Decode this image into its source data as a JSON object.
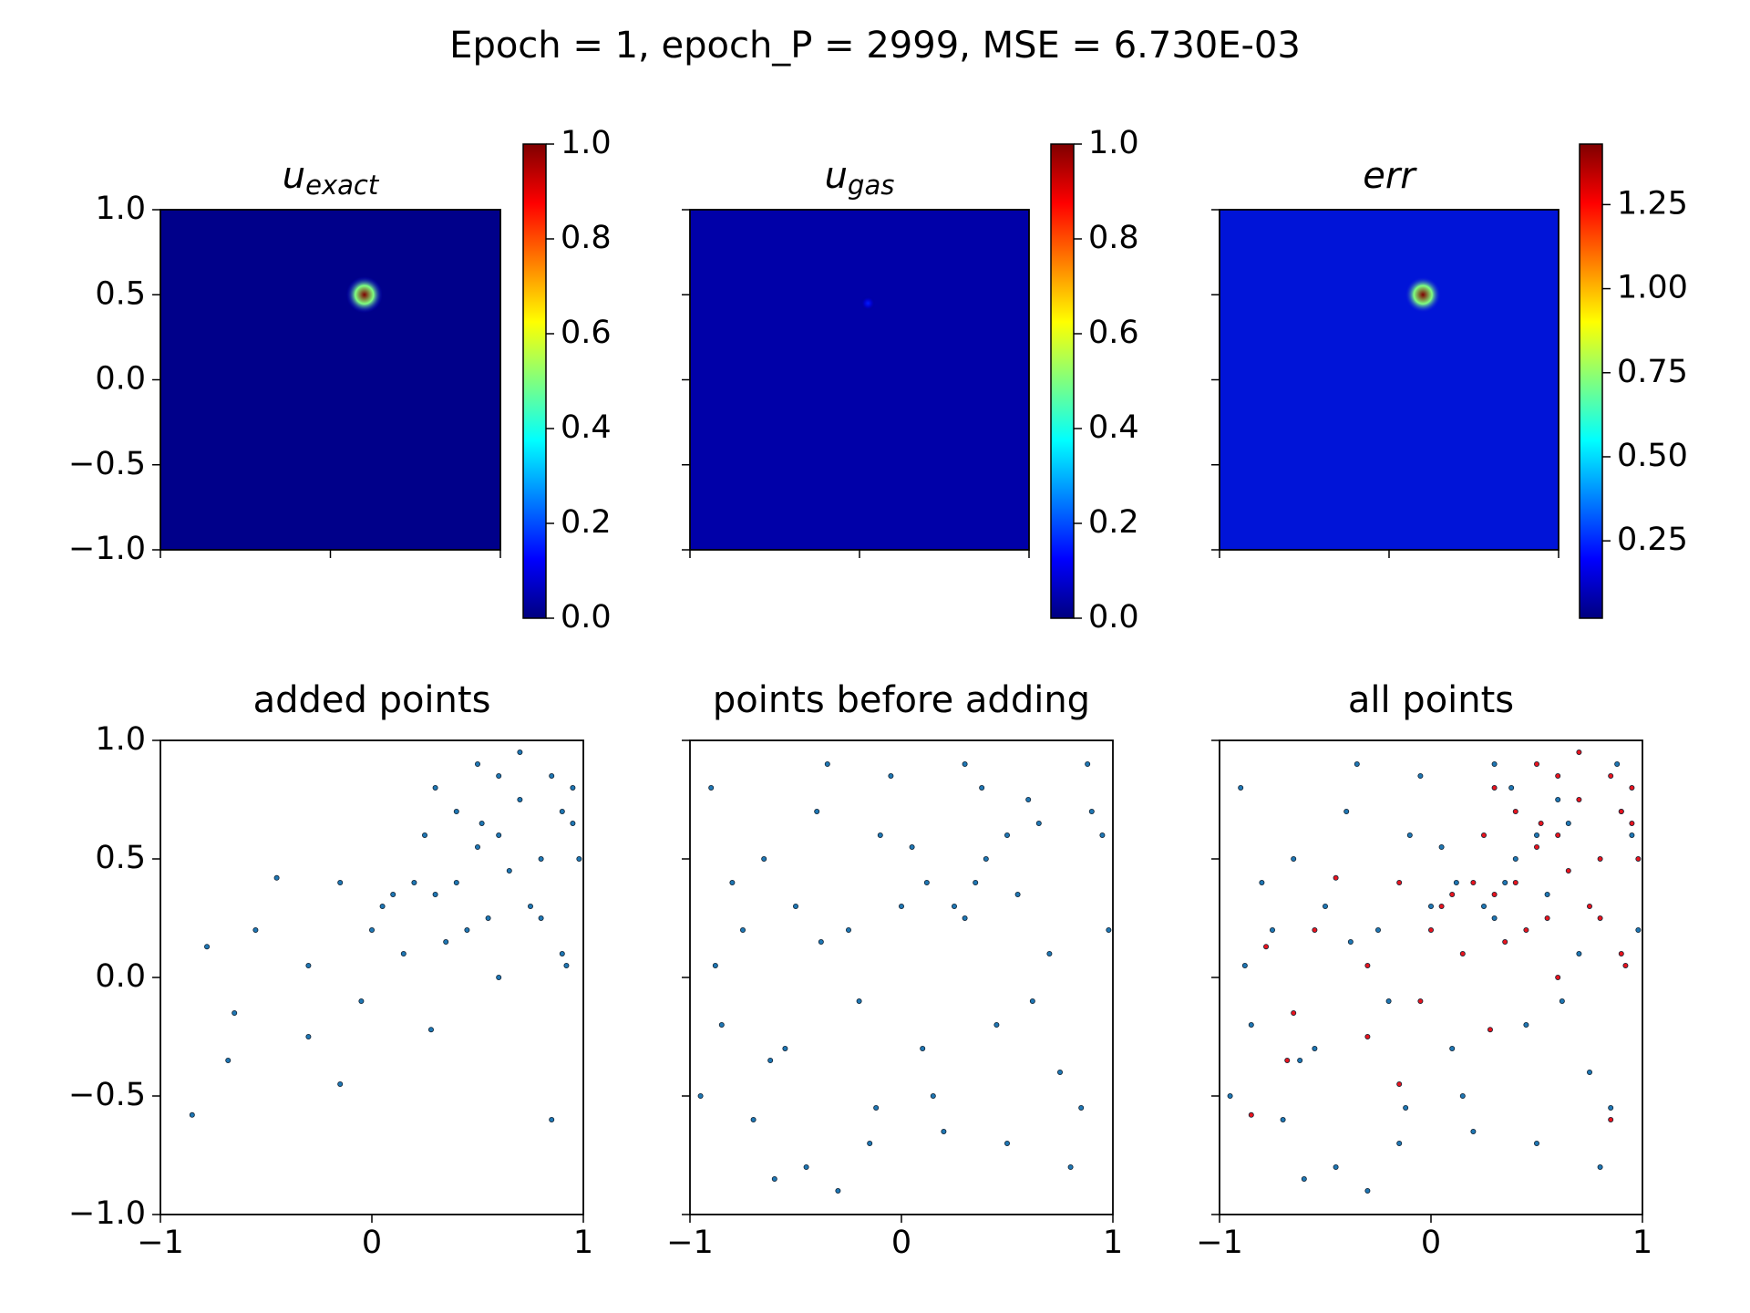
{
  "title": "Epoch = 1, epoch_P = 2999, MSE = 6.730E-03",
  "chart_data": [
    {
      "type": "heatmap",
      "title": "u",
      "title_subscript": "exact",
      "colormap": "jet",
      "color": "#00008a",
      "peak_x": 0.2,
      "peak_y": 0.5,
      "peak_value": 1.0,
      "xlim": [
        -1,
        1
      ],
      "ylim": [
        -1,
        1
      ],
      "xticks": [
        -1,
        0,
        1
      ],
      "show_xticklabels": false,
      "show_yticklabels": true,
      "yticks": [
        {
          "value": -1,
          "label": "−1.0"
        },
        {
          "value": -0.5,
          "label": "−0.5"
        },
        {
          "value": 0,
          "label": "0.0"
        },
        0.5,
        {
          "value": 1,
          "label": "1.0"
        }
      ],
      "clim": [
        0,
        1
      ],
      "cticks": [
        {
          "value": 0,
          "label": "0.0"
        },
        0.2,
        0.4,
        0.6,
        0.8,
        {
          "value": 1,
          "label": "1.0"
        }
      ]
    },
    {
      "type": "heatmap",
      "title": "u",
      "title_subscript": "gas",
      "colormap": "jet",
      "color": "#0000a8",
      "peak_x": 0.05,
      "peak_y": 0.45,
      "peak_value": 0.15,
      "xlim": [
        -1,
        1
      ],
      "ylim": [
        -1,
        1
      ],
      "xticks": [
        -1,
        0,
        1
      ],
      "show_xticklabels": false,
      "show_yticklabels": false,
      "yticks": [
        -1,
        -0.5,
        0,
        0.5,
        1
      ],
      "clim": [
        0,
        1
      ],
      "cticks": [
        {
          "value": 0,
          "label": "0.0"
        },
        0.2,
        0.4,
        0.6,
        0.8,
        {
          "value": 1,
          "label": "1.0"
        }
      ]
    },
    {
      "type": "heatmap",
      "title": "err",
      "colormap": "jet",
      "color": "#0014d8",
      "peak_x": 0.2,
      "peak_y": 0.5,
      "peak_value": 1.43,
      "xlim": [
        -1,
        1
      ],
      "ylim": [
        -1,
        1
      ],
      "xticks": [
        -1,
        0,
        1
      ],
      "show_xticklabels": false,
      "show_yticklabels": false,
      "yticks": [
        -1,
        -0.5,
        0,
        0.5,
        1
      ],
      "clim": [
        0.02,
        1.43
      ],
      "cticks": [
        0.25,
        {
          "value": 0.5,
          "label": "0.50"
        },
        0.75,
        {
          "value": 1,
          "label": "1.00"
        },
        1.25
      ]
    },
    {
      "type": "scatter",
      "title": "added points",
      "show_yticklabels": true,
      "xlim": [
        -1,
        1
      ],
      "ylim": [
        -1,
        1
      ],
      "xticks": [
        {
          "value": -1,
          "label": "−1"
        },
        0,
        1
      ],
      "yticks": [
        {
          "value": -1,
          "label": "−1.0"
        },
        {
          "value": -0.5,
          "label": "−0.5"
        },
        {
          "value": 0,
          "label": "0.0"
        },
        0.5,
        {
          "value": 1,
          "label": "1.0"
        }
      ],
      "series": [
        {
          "color": "#1f77b4",
          "x": [
            0.85,
            0.9,
            0.7,
            0.6,
            0.95,
            0.8,
            0.5,
            0.4,
            0.3,
            0.65,
            0.75,
            0.55,
            0.45,
            0.35,
            0.2,
            0.1,
            0.05,
            0.25,
            0.9,
            0.98,
            0.7,
            0.6,
            0.5,
            0.4,
            0.3,
            -0.15,
            -0.3,
            -0.45,
            -0.55,
            -0.78,
            -0.65,
            -0.68,
            -0.85,
            -0.15,
            -0.3,
            0.85,
            0.92,
            0.15,
            0.0,
            0.6,
            0.8,
            0.95,
            0.28,
            0.52,
            -0.05
          ],
          "values": [
            0.85,
            0.7,
            0.75,
            0.6,
            0.65,
            0.5,
            0.55,
            0.4,
            0.35,
            0.45,
            0.3,
            0.25,
            0.2,
            0.15,
            0.4,
            0.35,
            0.3,
            0.6,
            0.1,
            0.5,
            0.95,
            0.85,
            0.9,
            0.7,
            0.8,
            0.4,
            0.05,
            0.42,
            0.2,
            0.13,
            -0.15,
            -0.35,
            -0.58,
            -0.45,
            -0.25,
            -0.6,
            0.05,
            0.1,
            0.2,
            0.0,
            0.25,
            0.8,
            -0.22,
            0.65,
            -0.1
          ]
        }
      ]
    },
    {
      "type": "scatter",
      "title": "points before adding",
      "show_yticklabels": false,
      "xlim": [
        -1,
        1
      ],
      "ylim": [
        -1,
        1
      ],
      "xticks": [
        {
          "value": -1,
          "label": "−1"
        },
        0,
        1
      ],
      "yticks": [
        -1,
        -0.5,
        0,
        0.5,
        1
      ],
      "series": [
        {
          "color": "#1f77b4",
          "x": [
            -0.9,
            -0.7,
            -0.5,
            -0.3,
            -0.1,
            0.1,
            0.3,
            0.5,
            0.7,
            0.9,
            -0.85,
            -0.65,
            -0.45,
            -0.25,
            -0.05,
            0.15,
            0.35,
            0.55,
            0.75,
            0.95,
            -0.8,
            -0.6,
            -0.4,
            -0.2,
            0.0,
            0.2,
            0.4,
            0.6,
            0.8,
            0.98,
            -0.95,
            -0.75,
            -0.55,
            -0.35,
            -0.15,
            0.05,
            0.25,
            0.45,
            0.65,
            0.85,
            -0.88,
            -0.62,
            -0.38,
            -0.12,
            0.12,
            0.38,
            0.62,
            0.88,
            0.5,
            0.3
          ],
          "values": [
            0.8,
            -0.6,
            0.3,
            -0.9,
            0.6,
            -0.3,
            0.9,
            -0.7,
            0.1,
            0.7,
            -0.2,
            0.5,
            -0.8,
            0.2,
            0.85,
            -0.5,
            0.4,
            0.35,
            -0.4,
            0.6,
            0.4,
            -0.85,
            0.7,
            -0.1,
            0.3,
            -0.65,
            0.5,
            0.75,
            -0.8,
            0.2,
            -0.5,
            0.2,
            -0.3,
            0.9,
            -0.7,
            0.55,
            0.3,
            -0.2,
            0.65,
            -0.55,
            0.05,
            -0.35,
            0.15,
            -0.55,
            0.4,
            0.8,
            -0.1,
            0.9,
            0.6,
            0.25
          ]
        }
      ]
    },
    {
      "type": "scatter",
      "title": "all points",
      "show_yticklabels": false,
      "xlim": [
        -1,
        1
      ],
      "ylim": [
        -1,
        1
      ],
      "xticks": [
        {
          "value": -1,
          "label": "−1"
        },
        0,
        1
      ],
      "yticks": [
        -1,
        -0.5,
        0,
        0.5,
        1
      ],
      "series": [
        {
          "color": "#1f77b4",
          "x": [
            -0.9,
            -0.7,
            -0.5,
            -0.3,
            -0.1,
            0.1,
            0.3,
            0.5,
            0.7,
            0.9,
            -0.85,
            -0.65,
            -0.45,
            -0.25,
            -0.05,
            0.15,
            0.35,
            0.55,
            0.75,
            0.95,
            -0.8,
            -0.6,
            -0.4,
            -0.2,
            0.0,
            0.2,
            0.4,
            0.6,
            0.8,
            0.98,
            -0.95,
            -0.75,
            -0.55,
            -0.35,
            -0.15,
            0.05,
            0.25,
            0.45,
            0.65,
            0.85,
            -0.88,
            -0.62,
            -0.38,
            -0.12,
            0.12,
            0.38,
            0.62,
            0.88,
            0.5,
            0.3
          ],
          "values": [
            0.8,
            -0.6,
            0.3,
            -0.9,
            0.6,
            -0.3,
            0.9,
            -0.7,
            0.1,
            0.7,
            -0.2,
            0.5,
            -0.8,
            0.2,
            0.85,
            -0.5,
            0.4,
            0.35,
            -0.4,
            0.6,
            0.4,
            -0.85,
            0.7,
            -0.1,
            0.3,
            -0.65,
            0.5,
            0.75,
            -0.8,
            0.2,
            -0.5,
            0.2,
            -0.3,
            0.9,
            -0.7,
            0.55,
            0.3,
            -0.2,
            0.65,
            -0.55,
            0.05,
            -0.35,
            0.15,
            -0.55,
            0.4,
            0.8,
            -0.1,
            0.9,
            0.6,
            0.25
          ]
        },
        {
          "color": "#e8141e",
          "x": [
            0.85,
            0.9,
            0.7,
            0.6,
            0.95,
            0.8,
            0.5,
            0.4,
            0.3,
            0.65,
            0.75,
            0.55,
            0.45,
            0.35,
            0.2,
            0.1,
            0.05,
            0.25,
            0.9,
            0.98,
            0.7,
            0.6,
            0.5,
            0.4,
            0.3,
            -0.15,
            -0.3,
            -0.45,
            -0.55,
            -0.78,
            -0.65,
            -0.68,
            -0.85,
            -0.15,
            -0.3,
            0.85,
            0.92,
            0.15,
            0.0,
            0.6,
            0.8,
            0.95,
            0.28,
            0.52,
            -0.05
          ],
          "values": [
            0.85,
            0.7,
            0.75,
            0.6,
            0.65,
            0.5,
            0.55,
            0.4,
            0.35,
            0.45,
            0.3,
            0.25,
            0.2,
            0.15,
            0.4,
            0.35,
            0.3,
            0.6,
            0.1,
            0.5,
            0.95,
            0.85,
            0.9,
            0.7,
            0.8,
            0.4,
            0.05,
            0.42,
            0.2,
            0.13,
            -0.15,
            -0.35,
            -0.58,
            -0.45,
            -0.25,
            -0.6,
            0.05,
            0.1,
            0.2,
            0.0,
            0.25,
            0.8,
            -0.22,
            0.65,
            -0.1
          ]
        }
      ]
    }
  ]
}
